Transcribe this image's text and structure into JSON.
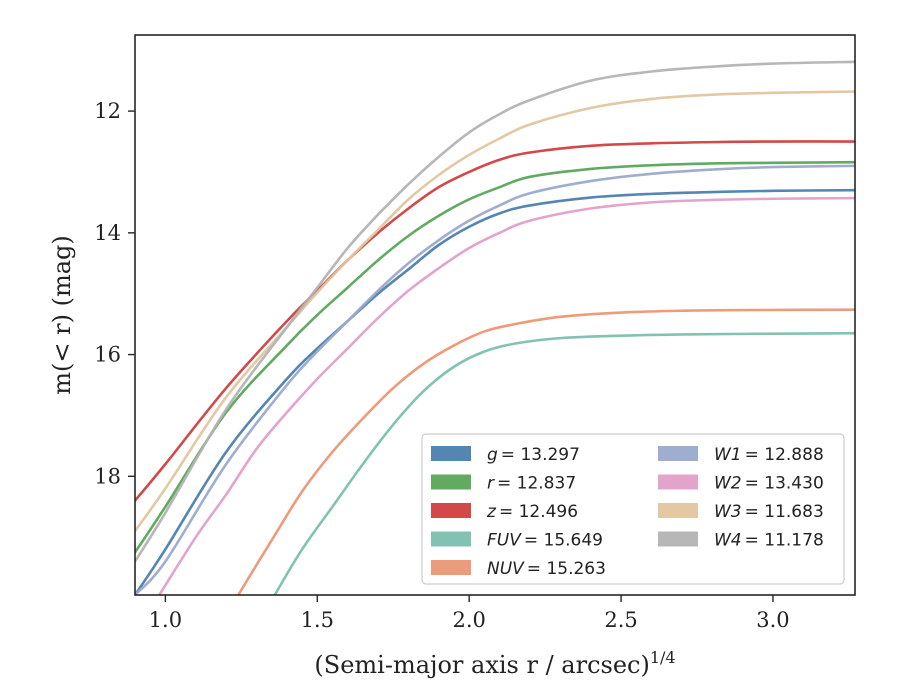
{
  "chart_data": {
    "type": "line",
    "title": "",
    "xlabel": "(Semi-major axis r / arcsec)",
    "xlabel_var": "r",
    "xlabel_sup": "1/4",
    "ylabel": "m(< r) (mag)",
    "xlim": [
      0.9,
      3.27
    ],
    "ylim": [
      19.95,
      10.75
    ],
    "y_inverted": true,
    "x_ticks": [
      1.0,
      1.5,
      2.0,
      2.5,
      3.0
    ],
    "x_tick_labels": [
      "1.0",
      "1.5",
      "2.0",
      "2.5",
      "3.0"
    ],
    "y_ticks": [
      12,
      14,
      16,
      18
    ],
    "y_tick_labels": [
      "12",
      "14",
      "16",
      "18"
    ],
    "grid": false,
    "legend": {
      "position": "lower-right",
      "columns": 2
    },
    "series": [
      {
        "name": "g",
        "label_value": "= 13.297",
        "color": "#4c7fae",
        "x": [
          0.9,
          1.0,
          1.2,
          1.4,
          1.5,
          1.6,
          1.7,
          1.8,
          1.9,
          2.0,
          2.1,
          2.2,
          2.4,
          2.6,
          2.8,
          3.0,
          3.27
        ],
        "y": [
          19.95,
          19.2,
          17.6,
          16.4,
          15.9,
          15.45,
          15.0,
          14.6,
          14.2,
          13.9,
          13.68,
          13.55,
          13.42,
          13.36,
          13.33,
          13.31,
          13.3
        ]
      },
      {
        "name": "r",
        "label_value": "= 12.837",
        "color": "#5aa55a",
        "x": [
          0.9,
          1.0,
          1.2,
          1.4,
          1.5,
          1.6,
          1.7,
          1.8,
          1.9,
          2.0,
          2.1,
          2.2,
          2.4,
          2.6,
          2.8,
          3.0,
          3.27
        ],
        "y": [
          19.25,
          18.5,
          16.95,
          15.85,
          15.35,
          14.9,
          14.45,
          14.05,
          13.72,
          13.45,
          13.25,
          13.08,
          12.95,
          12.89,
          12.86,
          12.85,
          12.84
        ]
      },
      {
        "name": "z",
        "label_value": "= 12.496",
        "color": "#d13f3f",
        "x": [
          0.9,
          1.0,
          1.2,
          1.4,
          1.5,
          1.6,
          1.7,
          1.8,
          1.9,
          2.0,
          2.1,
          2.2,
          2.4,
          2.6,
          2.8,
          3.0,
          3.27
        ],
        "y": [
          18.4,
          17.8,
          16.55,
          15.45,
          14.95,
          14.45,
          14.0,
          13.6,
          13.25,
          13.0,
          12.8,
          12.68,
          12.57,
          12.53,
          12.51,
          12.5,
          12.5
        ]
      },
      {
        "name": "FUV",
        "label_value": "= 15.649",
        "color": "#7bbfae",
        "x": [
          1.36,
          1.45,
          1.55,
          1.65,
          1.75,
          1.85,
          1.95,
          2.05,
          2.15,
          2.3,
          2.5,
          2.7,
          2.9,
          3.1,
          3.27
        ],
        "y": [
          19.95,
          19.2,
          18.5,
          17.8,
          17.15,
          16.6,
          16.2,
          15.95,
          15.82,
          15.73,
          15.69,
          15.67,
          15.66,
          15.655,
          15.65
        ]
      },
      {
        "name": "NUV",
        "label_value": "= 15.263",
        "color": "#eb9674",
        "x": [
          1.24,
          1.35,
          1.45,
          1.55,
          1.65,
          1.75,
          1.85,
          1.95,
          2.05,
          2.15,
          2.3,
          2.5,
          2.7,
          2.9,
          3.1,
          3.27
        ],
        "y": [
          19.95,
          19.05,
          18.25,
          17.6,
          17.05,
          16.55,
          16.15,
          15.85,
          15.62,
          15.5,
          15.38,
          15.31,
          15.28,
          15.27,
          15.265,
          15.263
        ]
      },
      {
        "name": "W1",
        "label_value": "= 12.888",
        "color": "#9aa9cb",
        "x": [
          0.9,
          1.0,
          1.2,
          1.4,
          1.5,
          1.6,
          1.7,
          1.8,
          1.9,
          2.0,
          2.1,
          2.2,
          2.4,
          2.6,
          2.8,
          3.0,
          3.27
        ],
        "y": [
          19.95,
          19.4,
          17.8,
          16.5,
          15.95,
          15.45,
          14.95,
          14.5,
          14.12,
          13.8,
          13.55,
          13.35,
          13.15,
          13.03,
          12.96,
          12.92,
          12.9
        ]
      },
      {
        "name": "W2",
        "label_value": "= 13.430",
        "color": "#e19fc9",
        "x": [
          0.98,
          1.1,
          1.2,
          1.3,
          1.4,
          1.5,
          1.6,
          1.7,
          1.8,
          1.9,
          2.0,
          2.1,
          2.2,
          2.4,
          2.6,
          2.8,
          3.0,
          3.27
        ],
        "y": [
          19.95,
          19.0,
          18.3,
          17.55,
          16.95,
          16.4,
          15.9,
          15.4,
          14.95,
          14.58,
          14.25,
          14.0,
          13.8,
          13.6,
          13.5,
          13.46,
          13.44,
          13.43
        ]
      },
      {
        "name": "W3",
        "label_value": "= 11.683",
        "color": "#e3c59f",
        "x": [
          0.9,
          1.0,
          1.2,
          1.4,
          1.5,
          1.6,
          1.7,
          1.8,
          1.9,
          2.0,
          2.1,
          2.2,
          2.4,
          2.6,
          2.8,
          3.0,
          3.27
        ],
        "y": [
          18.9,
          18.2,
          16.7,
          15.55,
          14.98,
          14.45,
          13.95,
          13.45,
          13.05,
          12.72,
          12.45,
          12.22,
          11.95,
          11.8,
          11.73,
          11.7,
          11.68
        ]
      },
      {
        "name": "W4",
        "label_value": "= 11.178",
        "color": "#b3b3b3",
        "x": [
          0.9,
          1.0,
          1.2,
          1.4,
          1.5,
          1.6,
          1.7,
          1.8,
          1.9,
          2.0,
          2.1,
          2.2,
          2.4,
          2.6,
          2.8,
          3.0,
          3.27
        ],
        "y": [
          19.4,
          18.6,
          16.9,
          15.55,
          14.9,
          14.25,
          13.7,
          13.2,
          12.75,
          12.35,
          12.05,
          11.82,
          11.5,
          11.35,
          11.27,
          11.22,
          11.19
        ]
      }
    ]
  }
}
